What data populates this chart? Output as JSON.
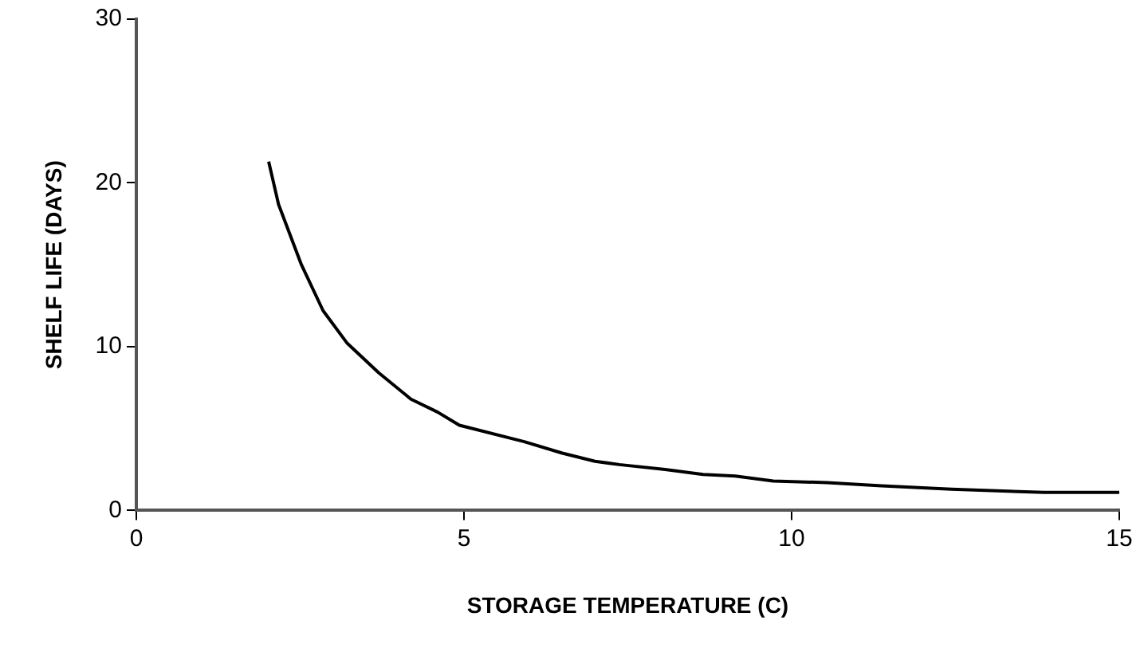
{
  "chart_data": {
    "type": "line",
    "xlabel": "STORAGE TEMPERATURE (C)",
    "ylabel": "SHELF LIFE (DAYS)",
    "x": [
      2.02,
      2.17,
      2.52,
      2.85,
      3.22,
      3.7,
      4.19,
      4.6,
      4.93,
      5.92,
      6.5,
      7.0,
      7.37,
      8.07,
      8.65,
      9.14,
      9.72,
      10.54,
      11.37,
      12.44,
      13.85,
      15.0
    ],
    "series": [
      {
        "color": "#000000",
        "values": [
          21.3,
          18.7,
          15.0,
          12.2,
          10.2,
          8.4,
          6.8,
          6.0,
          5.2,
          4.2,
          3.5,
          3.0,
          2.8,
          2.5,
          2.2,
          2.1,
          1.8,
          1.7,
          1.5,
          1.3,
          1.1,
          1.1
        ]
      }
    ],
    "xlim": [
      0,
      15
    ],
    "xticks": [
      0,
      5,
      10,
      15
    ],
    "ylim": [
      0,
      30
    ],
    "yticks": [
      0,
      10,
      20,
      30
    ],
    "grid": false,
    "legend": false,
    "marker": "none",
    "line_style": "solid"
  }
}
